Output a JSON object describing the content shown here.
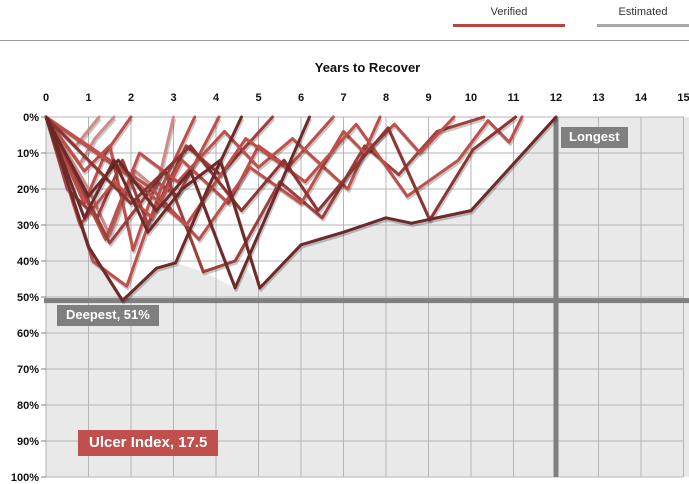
{
  "tabs": [
    {
      "label": "Verified",
      "state": "active",
      "underline_color": "#b94441"
    },
    {
      "label": "Estimated",
      "state": "inactive",
      "underline_color": "#a8a8a8"
    }
  ],
  "chart_data": {
    "type": "line",
    "title": "Years to Recover",
    "xlabel": "Years to Recover",
    "x_ticks": [
      0,
      1,
      2,
      3,
      4,
      5,
      6,
      7,
      8,
      9,
      10,
      11,
      12,
      13,
      14,
      15
    ],
    "y_tick_labels": [
      "0%",
      "10%",
      "20%",
      "30%",
      "40%",
      "50%",
      "60%",
      "70%",
      "80%",
      "90%",
      "100%"
    ],
    "xlim": [
      0,
      15
    ],
    "ylim_drawdown_pct": [
      0,
      100
    ],
    "grid": true,
    "annotations": {
      "deepest": {
        "label": "Deepest, 51%",
        "depth_pct": 51
      },
      "longest": {
        "label": "Longest",
        "years": 12
      },
      "ulcer_index": {
        "label": "Ulcer Index, 17.5",
        "value": 17.5
      }
    },
    "envelope_max_drawdown": [
      [
        0,
        0
      ],
      [
        1,
        36
      ],
      [
        1.8,
        51
      ],
      [
        2.6,
        42
      ],
      [
        3.05,
        40.5
      ],
      [
        3.7,
        43
      ],
      [
        4.45,
        47.5
      ],
      [
        4.73,
        42
      ],
      [
        5.03,
        47.5
      ],
      [
        6,
        35.5
      ],
      [
        6.5,
        33
      ],
      [
        7,
        32
      ],
      [
        8,
        28
      ],
      [
        8.6,
        29.5
      ],
      [
        9.03,
        29
      ],
      [
        10,
        26
      ],
      [
        12,
        0
      ]
    ],
    "series": [
      {
        "name": "drawdown-1",
        "color": "#d08a87",
        "points": [
          [
            0,
            0
          ],
          [
            0.7,
            8
          ],
          [
            1.25,
            0
          ]
        ]
      },
      {
        "name": "drawdown-2",
        "color": "#d08a87",
        "points": [
          [
            0,
            0
          ],
          [
            0.8,
            13
          ],
          [
            1.15,
            6
          ],
          [
            1.6,
            0
          ]
        ]
      },
      {
        "name": "drawdown-3",
        "color": "#d08a87",
        "points": [
          [
            0,
            0
          ],
          [
            1,
            20
          ],
          [
            1.5,
            33
          ],
          [
            2.1,
            15
          ],
          [
            2.6,
            20
          ],
          [
            3,
            0
          ]
        ]
      },
      {
        "name": "drawdown-4",
        "color": "#bf4f4b",
        "points": [
          [
            0,
            0
          ],
          [
            0.9,
            24
          ],
          [
            1.4,
            10
          ],
          [
            2,
            0
          ]
        ]
      },
      {
        "name": "drawdown-5",
        "color": "#bf4f4b",
        "points": [
          [
            0,
            0
          ],
          [
            0.9,
            15
          ],
          [
            1.5,
            8
          ],
          [
            2.05,
            37
          ],
          [
            2.6,
            18
          ],
          [
            3.1,
            22
          ],
          [
            4.07,
            0
          ]
        ]
      },
      {
        "name": "drawdown-6",
        "color": "#bf4f4b",
        "points": [
          [
            0,
            0
          ],
          [
            1.1,
            40
          ],
          [
            1.9,
            47
          ],
          [
            2.7,
            20
          ],
          [
            3.5,
            0
          ]
        ]
      },
      {
        "name": "drawdown-7",
        "color": "#9e3f3b",
        "points": [
          [
            0,
            0
          ],
          [
            0.5,
            20
          ],
          [
            1.2,
            28
          ],
          [
            1.8,
            12
          ],
          [
            2.4,
            30
          ],
          [
            3.3,
            8
          ],
          [
            4.1,
            16
          ],
          [
            5.33,
            0
          ]
        ]
      },
      {
        "name": "drawdown-8",
        "color": "#bf4f4b",
        "points": [
          [
            0,
            0
          ],
          [
            0.8,
            30
          ],
          [
            1.6,
            18
          ],
          [
            2.5,
            28
          ],
          [
            3.2,
            12
          ],
          [
            4.3,
            24
          ],
          [
            5,
            8
          ],
          [
            5.7,
            14
          ],
          [
            6.76,
            0
          ]
        ]
      },
      {
        "name": "drawdown-9",
        "color": "#bf4f4b",
        "points": [
          [
            0,
            0
          ],
          [
            1.4,
            34
          ],
          [
            2.2,
            10
          ],
          [
            3.1,
            18
          ],
          [
            4.2,
            4
          ],
          [
            5,
            14
          ],
          [
            5.8,
            6
          ],
          [
            7.1,
            20
          ],
          [
            7.86,
            0
          ]
        ]
      },
      {
        "name": "drawdown-10",
        "color": "#9e3f3b",
        "points": [
          [
            0,
            0
          ],
          [
            1.5,
            35
          ],
          [
            2.8,
            15
          ],
          [
            3.7,
            43
          ],
          [
            4.45,
            40
          ],
          [
            5.5,
            18
          ],
          [
            6.5,
            28
          ],
          [
            7.5,
            8
          ],
          [
            8.3,
            16
          ],
          [
            9.2,
            4
          ],
          [
            10.3,
            0
          ]
        ]
      },
      {
        "name": "drawdown-11",
        "color": "#bf4f4b",
        "points": [
          [
            0,
            0
          ],
          [
            2.5,
            20
          ],
          [
            3.6,
            34
          ],
          [
            4.8,
            14
          ],
          [
            6,
            24
          ],
          [
            7,
            4
          ],
          [
            7.5,
            10
          ],
          [
            8.2,
            2
          ],
          [
            8.8,
            10
          ],
          [
            9.6,
            0
          ]
        ]
      },
      {
        "name": "drawdown-12",
        "color": "#bf4f4b",
        "points": [
          [
            0,
            0
          ],
          [
            1.9,
            16
          ],
          [
            3.3,
            30
          ],
          [
            4.7,
            6
          ],
          [
            6.1,
            18
          ],
          [
            7.3,
            2
          ],
          [
            8.5,
            22
          ],
          [
            9.7,
            12
          ],
          [
            10.4,
            1
          ],
          [
            10.9,
            7
          ],
          [
            11.2,
            0
          ]
        ]
      },
      {
        "name": "drawdown-13",
        "color": "#8c3531",
        "points": [
          [
            0,
            0
          ],
          [
            2,
            24
          ],
          [
            3.4,
            8
          ],
          [
            4.6,
            26
          ],
          [
            5.6,
            12
          ],
          [
            6.4,
            26
          ],
          [
            8.05,
            3
          ],
          [
            9.03,
            28.6
          ],
          [
            10.05,
            9
          ],
          [
            11.05,
            0
          ]
        ]
      },
      {
        "name": "drawdown-14",
        "color": "#6e2a28",
        "points": [
          [
            0,
            0
          ],
          [
            1,
            36
          ],
          [
            1.8,
            51
          ],
          [
            2.6,
            42
          ],
          [
            3.05,
            40.5
          ],
          [
            3.8,
            20
          ],
          [
            4.6,
            0
          ]
        ]
      },
      {
        "name": "drawdown-15",
        "color": "#6e2a28",
        "points": [
          [
            0,
            0
          ],
          [
            1,
            22
          ],
          [
            1.7,
            12
          ],
          [
            2.6,
            26
          ],
          [
            3.4,
            15
          ],
          [
            4.45,
            47.5
          ],
          [
            6.2,
            0
          ]
        ]
      },
      {
        "name": "drawdown-16",
        "color": "#6e2a28",
        "points": [
          [
            0,
            0
          ],
          [
            0.9,
            28
          ],
          [
            1.6,
            12
          ],
          [
            2.4,
            32
          ],
          [
            3.2,
            20
          ],
          [
            4.1,
            12
          ],
          [
            5.03,
            47.5
          ],
          [
            6,
            35.5
          ],
          [
            7,
            32
          ],
          [
            8,
            28
          ],
          [
            8.6,
            29.5
          ],
          [
            10,
            26
          ],
          [
            12,
            0
          ]
        ]
      }
    ]
  },
  "colors": {
    "plot_bg": "#e9e9e9",
    "grid": "#b5b5b5",
    "marker_bar": "#7f7f7f",
    "annotation_gray_bg": "#7f7f7f",
    "ulcer_bg": "#c0504d",
    "envelope_fill": "#ffffff",
    "tab_active_underline": "#b94441",
    "tab_inactive_underline": "#a8a8a8",
    "header_rule": "#999999"
  }
}
